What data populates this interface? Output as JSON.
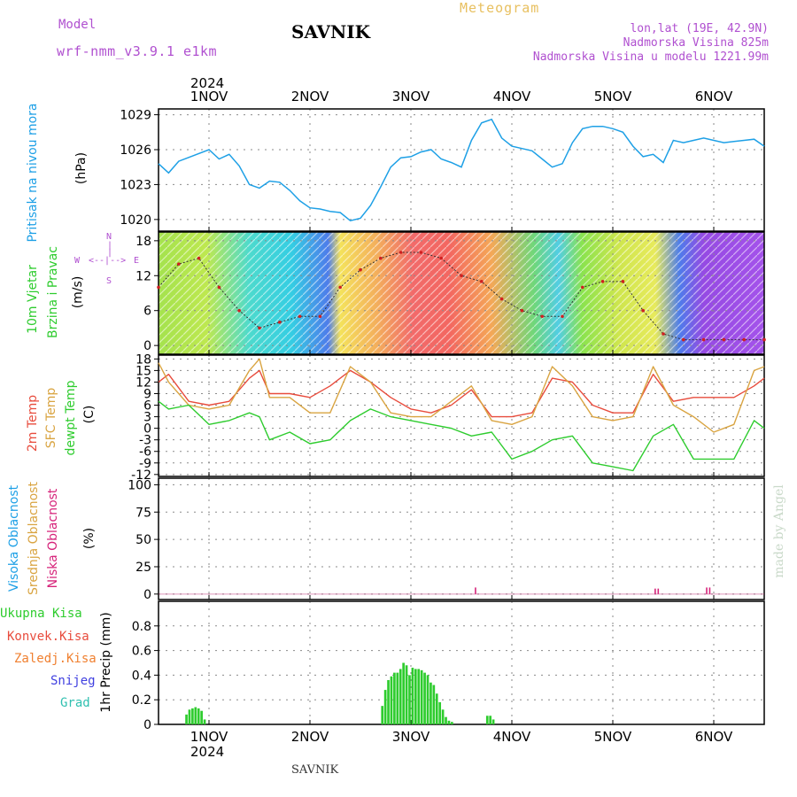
{
  "header": {
    "model_label": "Model",
    "model_name": "wrf-nmm_v3.9.1 e1km",
    "title": "SAVNIK",
    "meteogram": "Meteogram",
    "lonlat": "lon,lat (19E, 42.9N)",
    "elevation": "Nadmorska Visina 825m",
    "model_elevation": "Nadmorska Visina u modelu 1221.99m",
    "top_year": "2024",
    "bottom_year": "2024",
    "footer": "SAVNIK",
    "watermark": "made by Angel"
  },
  "colors": {
    "pressure": "#1ea0e6",
    "temp2m": "#e84c3d",
    "sfc": "#d9a441",
    "dew": "#2ecc2e",
    "precip": "#2ecc2e",
    "cloud_low": "#d6237a",
    "model": "#b050d0",
    "lonlat": "#b050d0",
    "meteogram": "#e8c060",
    "watermark": "#c9d9c9"
  },
  "panel_labels": {
    "pressure": {
      "l1": "Pritisak na nivou mora",
      "unit": "(hPa)"
    },
    "wind": {
      "l1": "10m Vjetar",
      "l2": "Brzina i Pravac",
      "unit": "(m/s)"
    },
    "compass": {
      "w": "W",
      "e": "E",
      "n": "N",
      "s": "S"
    },
    "temp": {
      "l1": "2m Temp",
      "l2": "SFC Temp",
      "l3": "dewpt Temp",
      "unit": "(C)"
    },
    "cloud": {
      "l1": "Visoka Oblacnost",
      "l2": "Srednja Oblacnost",
      "l3": "Niska Oblacnost",
      "unit": "(%)"
    },
    "precip": {
      "unit": "1hr Precip (mm)"
    },
    "legend": [
      "Ukupna Kisa",
      "Konvek.Kisa",
      "Zaledj.Kisa",
      "Snijeg",
      "Grad"
    ]
  },
  "chart_data": [
    {
      "type": "line",
      "title": "",
      "ylabel": "(hPa)",
      "dates": [
        "1NOV",
        "2NOV",
        "3NOV",
        "4NOV",
        "5NOV",
        "6NOV"
      ],
      "ylim": [
        1019,
        1029.5
      ],
      "yticks": [
        1020,
        1023,
        1026,
        1029
      ],
      "series": [
        {
          "name": "Pritisak na nivou mora",
          "x": [
            0.5,
            0.6,
            0.7,
            0.85,
            1.0,
            1.1,
            1.2,
            1.3,
            1.4,
            1.5,
            1.6,
            1.7,
            1.8,
            1.9,
            2.0,
            2.1,
            2.2,
            2.3,
            2.4,
            2.5,
            2.6,
            2.7,
            2.8,
            2.9,
            3.0,
            3.1,
            3.2,
            3.3,
            3.4,
            3.5,
            3.6,
            3.7,
            3.8,
            3.9,
            4.0,
            4.1,
            4.2,
            4.3,
            4.4,
            4.5,
            4.6,
            4.7,
            4.8,
            4.9,
            5.0,
            5.1,
            5.2,
            5.3,
            5.4,
            5.5,
            5.6,
            5.7,
            5.8,
            5.9,
            6.0,
            6.1,
            6.2,
            6.3,
            6.4,
            6.5
          ],
          "y": [
            1024.8,
            1024.0,
            1025.0,
            1025.5,
            1026.0,
            1025.2,
            1025.6,
            1024.6,
            1023.0,
            1022.7,
            1023.3,
            1023.2,
            1022.5,
            1021.6,
            1021.0,
            1020.9,
            1020.7,
            1020.6,
            1019.9,
            1020.1,
            1021.2,
            1022.8,
            1024.5,
            1025.3,
            1025.4,
            1025.8,
            1026.0,
            1025.2,
            1024.9,
            1024.5,
            1026.8,
            1028.3,
            1028.6,
            1027.0,
            1026.3,
            1026.1,
            1025.9,
            1025.2,
            1024.5,
            1024.8,
            1026.6,
            1027.8,
            1028.0,
            1028.0,
            1027.8,
            1027.5,
            1026.3,
            1025.4,
            1025.6,
            1024.9,
            1026.8,
            1026.6,
            1026.8,
            1027.0,
            1026.8,
            1026.6,
            1026.7,
            1026.8,
            1026.9,
            1026.3
          ]
        }
      ]
    },
    {
      "type": "scatter",
      "title": "",
      "ylabel": "(m/s)",
      "ylim": [
        -1.5,
        19.5
      ],
      "yticks": [
        0,
        6,
        12,
        18
      ],
      "series": [
        {
          "name": "10m Vjetar",
          "x": [
            0.5,
            0.7,
            0.9,
            1.1,
            1.3,
            1.5,
            1.7,
            1.9,
            2.1,
            2.3,
            2.5,
            2.7,
            2.9,
            3.1,
            3.3,
            3.5,
            3.7,
            3.9,
            4.1,
            4.3,
            4.5,
            4.7,
            4.9,
            5.1,
            5.3,
            5.5,
            5.7,
            5.9,
            6.1,
            6.3,
            6.5
          ],
          "y": [
            10,
            14,
            15,
            10,
            6,
            3,
            4,
            5,
            5,
            10,
            13,
            15,
            16,
            16,
            15,
            12,
            11,
            8,
            6,
            5,
            5,
            10,
            11,
            11,
            6,
            2,
            1,
            1,
            1,
            1,
            1
          ]
        }
      ]
    },
    {
      "type": "line",
      "title": "",
      "ylabel": "(C)",
      "ylim": [
        -12.5,
        19
      ],
      "yticks": [
        18,
        15,
        12,
        9,
        6,
        3,
        0,
        -3,
        -6,
        -9,
        -12
      ],
      "series": [
        {
          "name": "2m Temp",
          "x": [
            0.5,
            0.6,
            0.8,
            1.0,
            1.2,
            1.4,
            1.5,
            1.6,
            1.8,
            2.0,
            2.2,
            2.4,
            2.6,
            2.8,
            3.0,
            3.2,
            3.4,
            3.6,
            3.8,
            4.0,
            4.2,
            4.4,
            4.6,
            4.8,
            5.0,
            5.2,
            5.4,
            5.6,
            5.8,
            6.0,
            6.2,
            6.4,
            6.5
          ],
          "y": [
            12,
            14,
            7,
            6,
            7,
            13,
            15,
            9,
            9,
            8,
            11,
            15,
            12,
            8,
            5,
            4,
            6,
            10,
            3,
            3,
            4,
            13,
            12,
            6,
            4,
            4,
            14,
            7,
            8,
            8,
            8,
            11,
            13
          ]
        },
        {
          "name": "SFC Temp",
          "x": [
            0.5,
            0.6,
            0.8,
            1.0,
            1.2,
            1.4,
            1.5,
            1.6,
            1.8,
            2.0,
            2.2,
            2.4,
            2.6,
            2.8,
            3.0,
            3.2,
            3.4,
            3.6,
            3.8,
            4.0,
            4.2,
            4.4,
            4.6,
            4.8,
            5.0,
            5.2,
            5.4,
            5.6,
            5.8,
            6.0,
            6.2,
            6.4,
            6.5
          ],
          "y": [
            17,
            12,
            6,
            5,
            6,
            15,
            18,
            8,
            8,
            4,
            4,
            16,
            12,
            4,
            3,
            3,
            7,
            11,
            2,
            1,
            3,
            16,
            11,
            3,
            2,
            3,
            16,
            6,
            3,
            -1,
            1,
            15,
            16
          ]
        },
        {
          "name": "dewpt Temp",
          "x": [
            0.5,
            0.6,
            0.8,
            1.0,
            1.2,
            1.4,
            1.5,
            1.6,
            1.8,
            2.0,
            2.2,
            2.4,
            2.6,
            2.8,
            3.0,
            3.2,
            3.4,
            3.6,
            3.8,
            4.0,
            4.2,
            4.4,
            4.6,
            4.8,
            5.0,
            5.2,
            5.4,
            5.6,
            5.8,
            6.0,
            6.2,
            6.4,
            6.5
          ],
          "y": [
            7,
            5,
            6,
            1,
            2,
            4,
            3,
            -3,
            -1,
            -4,
            -3,
            2,
            5,
            3,
            2,
            1,
            0,
            -2,
            -1,
            -8,
            -6,
            -3,
            -2,
            -9,
            -10,
            -11,
            -2,
            1,
            -8,
            -8,
            -8,
            2,
            0
          ]
        }
      ]
    },
    {
      "type": "bar",
      "title": "",
      "ylabel": "(%)",
      "ylim": [
        -5,
        106
      ],
      "yticks": [
        0,
        25,
        50,
        75,
        100
      ],
      "series": [
        {
          "name": "Niska Oblacnost",
          "x": [
            3.64,
            5.42,
            5.45,
            5.93,
            5.96
          ],
          "values": [
            6,
            5,
            5,
            6,
            6
          ]
        }
      ]
    },
    {
      "type": "bar",
      "title": "",
      "ylabel": "1hr Precip (mm)",
      "ylim": [
        0,
        1.0
      ],
      "yticks": [
        0,
        0.2,
        0.4,
        0.6,
        0.8
      ],
      "series": [
        {
          "name": "Ukupna Kisa",
          "x": [
            0.78,
            0.81,
            0.84,
            0.87,
            0.9,
            0.93,
            0.96,
            2.72,
            2.75,
            2.78,
            2.81,
            2.84,
            2.87,
            2.9,
            2.93,
            2.96,
            2.99,
            3.02,
            3.05,
            3.08,
            3.11,
            3.14,
            3.17,
            3.2,
            3.23,
            3.26,
            3.29,
            3.32,
            3.35,
            3.38,
            3.41,
            3.76,
            3.79,
            3.82
          ],
          "values": [
            0.08,
            0.12,
            0.13,
            0.14,
            0.13,
            0.11,
            0.04,
            0.15,
            0.28,
            0.36,
            0.39,
            0.42,
            0.42,
            0.45,
            0.5,
            0.48,
            0.4,
            0.46,
            0.45,
            0.45,
            0.44,
            0.42,
            0.4,
            0.34,
            0.32,
            0.25,
            0.18,
            0.12,
            0.06,
            0.03,
            0.02,
            0.07,
            0.07,
            0.04
          ]
        }
      ]
    }
  ]
}
